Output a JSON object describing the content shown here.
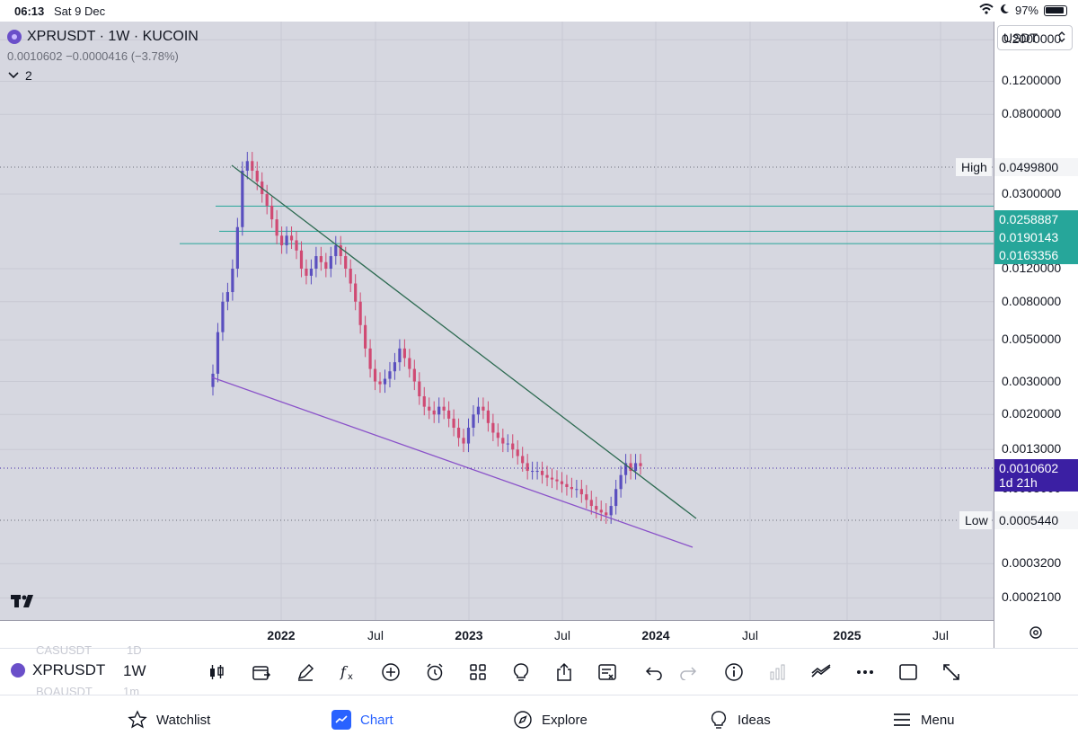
{
  "status_bar": {
    "time": "06:13",
    "date": "Sat 9 Dec",
    "battery": "97%"
  },
  "legend": {
    "title": "XPRUSDT · 1W · KUCOIN",
    "values": "0.0010602  −0.0000416 (−3.78%)",
    "indicator_count": "2"
  },
  "currency": "USDT",
  "price_scale": {
    "ticks": [
      "0.2000000",
      "0.1200000",
      "0.0800000",
      "0.0300000",
      "0.0120000",
      "0.0080000",
      "0.0050000",
      "0.0030000",
      "0.0020000",
      "0.0013000",
      "0.0003200",
      "0.0002100"
    ],
    "high_tag": "High",
    "high_value": "0.0499800",
    "low_tag": "Low",
    "low_value": "0.0005440",
    "level_1": "0.0258887",
    "level_2": "0.0190143",
    "level_3": "0.0163356",
    "current_price": "0.0010602",
    "countdown": "1d 21h",
    "hidden_tick": "0.0008000"
  },
  "time_scale": {
    "labels": [
      "2022",
      "Jul",
      "2023",
      "Jul",
      "2024",
      "Jul",
      "2025",
      "Jul"
    ]
  },
  "toolbar": {
    "symbol": "XPRUSDT",
    "interval": "1W",
    "ghost_above": "CASUSDT",
    "ghost_above_interval": "1D",
    "ghost_below": "BOAUSDT",
    "ghost_below_interval": "1m"
  },
  "nav": {
    "watchlist": "Watchlist",
    "chart": "Chart",
    "explore": "Explore",
    "ideas": "Ideas",
    "menu": "Menu"
  },
  "colors": {
    "up": "#5a4fbf",
    "down": "#d04a73",
    "upper_trendline": "#2e6b52",
    "lower_trendline": "#8a52c9",
    "level_line": "#26a69a",
    "current_price": "#3b1fa3"
  },
  "chart_data": {
    "type": "candlestick",
    "scale": "log",
    "x_range": [
      "2021-10",
      "2025-10"
    ],
    "y_range": [
      0.00016,
      0.25
    ],
    "grid": true,
    "levels": [
      0.0258887,
      0.0190143,
      0.0163356
    ],
    "high": 0.04998,
    "low": 0.000544,
    "last": 0.0010602,
    "series_trend": [
      0.0033,
      0.0055,
      0.008,
      0.009,
      0.012,
      0.02,
      0.04,
      0.045,
      0.04,
      0.035,
      0.03,
      0.026,
      0.022,
      0.018,
      0.016,
      0.018,
      0.017,
      0.015,
      0.012,
      0.011,
      0.012,
      0.014,
      0.013,
      0.012,
      0.014,
      0.016,
      0.014,
      0.012,
      0.01,
      0.008,
      0.006,
      0.0045,
      0.0035,
      0.003,
      0.0029,
      0.0031,
      0.0034,
      0.0038,
      0.0045,
      0.004,
      0.0035,
      0.003,
      0.0025,
      0.0022,
      0.0021,
      0.002,
      0.0022,
      0.0021,
      0.0019,
      0.0017,
      0.0015,
      0.0014,
      0.0017,
      0.002,
      0.0022,
      0.0021,
      0.0018,
      0.0016,
      0.0015,
      0.0014,
      0.0014,
      0.0013,
      0.0012,
      0.0011,
      0.001,
      0.001,
      0.001,
      0.00095,
      0.00092,
      0.0009,
      0.00088,
      0.00085,
      0.00082,
      0.0008,
      0.0008,
      0.00075,
      0.0007,
      0.00065,
      0.00062,
      0.0006,
      0.00058,
      0.00065,
      0.0008,
      0.00095,
      0.0011,
      0.001,
      0.0011,
      0.0010602
    ]
  }
}
